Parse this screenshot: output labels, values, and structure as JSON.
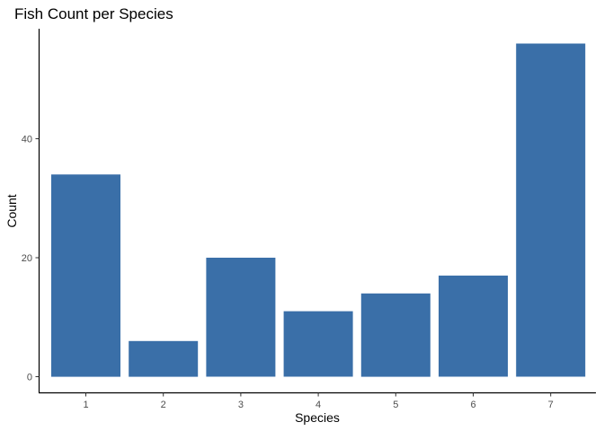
{
  "chart_data": {
    "type": "bar",
    "title": "Fish Count per Species",
    "xlabel": "Species",
    "ylabel": "Count",
    "categories": [
      "1",
      "2",
      "3",
      "4",
      "5",
      "6",
      "7"
    ],
    "values": [
      34,
      6,
      20,
      11,
      14,
      17,
      56
    ],
    "ylim": [
      0,
      58.8
    ],
    "yticks": [
      "0",
      "20",
      "40"
    ],
    "ytick_values": [
      0,
      20,
      40
    ],
    "bar_color": "#3A6FA8",
    "grid": false,
    "legend": "none"
  }
}
